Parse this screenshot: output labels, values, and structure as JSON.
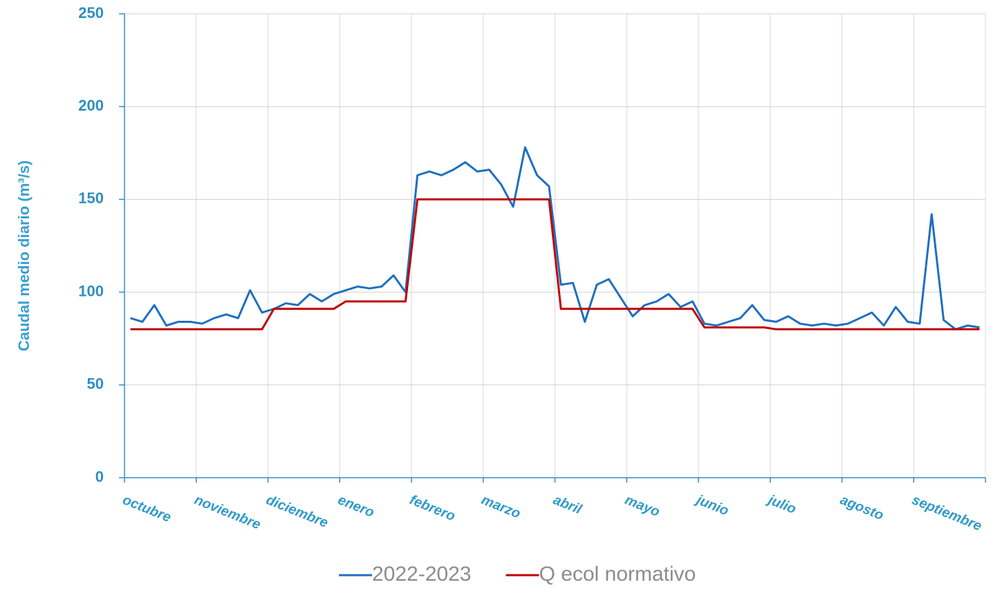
{
  "chart_data": {
    "type": "line",
    "ylabel": "Caudal medio diario (m³/s)",
    "categories": [
      "octubre",
      "noviembre",
      "diciembre",
      "enero",
      "febrero",
      "marzo",
      "abril",
      "mayo",
      "junio",
      "julio",
      "agosto",
      "septiembre"
    ],
    "ylim": [
      0,
      250
    ],
    "yticks": [
      0,
      50,
      100,
      150,
      200,
      250
    ],
    "grid": true,
    "legend": "bottom",
    "series": [
      {
        "name": "2022-2023",
        "color": "#1f6fbf",
        "values": [
          [
            86,
            84,
            93,
            82,
            84,
            84
          ],
          [
            83,
            86,
            88,
            86,
            101,
            89
          ],
          [
            91,
            94,
            93,
            99,
            95,
            99
          ],
          [
            101,
            103,
            102,
            103,
            109,
            100
          ],
          [
            163,
            165,
            163,
            166,
            170,
            165
          ],
          [
            166,
            158,
            146,
            178,
            163,
            157
          ],
          [
            104,
            105,
            84,
            104,
            107,
            97
          ],
          [
            87,
            93,
            95,
            99,
            92,
            95
          ],
          [
            83,
            82,
            84,
            86,
            93,
            85
          ],
          [
            84,
            87,
            83,
            82,
            83,
            82
          ],
          [
            83,
            86,
            89,
            82,
            92,
            84
          ],
          [
            83,
            142,
            85,
            80,
            82,
            81
          ]
        ]
      },
      {
        "name": "Q ecol normativo",
        "color": "#c00000",
        "values": [
          [
            80,
            80,
            80,
            80,
            80,
            80
          ],
          [
            80,
            80,
            80,
            80,
            80,
            80
          ],
          [
            91,
            91,
            91,
            91,
            91,
            91
          ],
          [
            95,
            95,
            95,
            95,
            95,
            95
          ],
          [
            150,
            150,
            150,
            150,
            150,
            150
          ],
          [
            150,
            150,
            150,
            150,
            150,
            150
          ],
          [
            91,
            91,
            91,
            91,
            91,
            91
          ],
          [
            91,
            91,
            91,
            91,
            91,
            91
          ],
          [
            81,
            81,
            81,
            81,
            81,
            81
          ],
          [
            80,
            80,
            80,
            80,
            80,
            80
          ],
          [
            80,
            80,
            80,
            80,
            80,
            80
          ],
          [
            80,
            80,
            80,
            80,
            80,
            80
          ]
        ]
      }
    ]
  }
}
